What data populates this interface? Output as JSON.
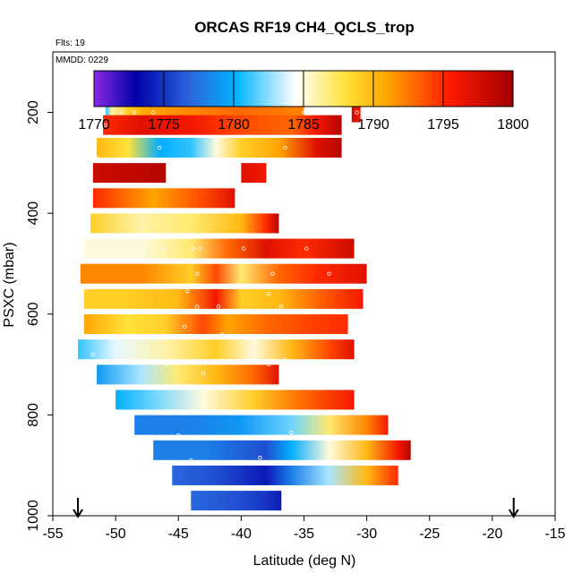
{
  "chart_data": {
    "type": "heatmap",
    "title": "ORCAS RF19 CH4_QCLS_trop",
    "annotations": {
      "flights": "Flts: 19",
      "date": "MMDD: 0229"
    },
    "xlabel": "Latitude (deg N)",
    "ylabel": "PSXC (mbar)",
    "xlim": [
      -55,
      -15
    ],
    "ylim": [
      1000,
      80
    ],
    "x_ticks": [
      "-55",
      "-50",
      "-45",
      "-40",
      "-35",
      "-30",
      "-25",
      "-20",
      "-15"
    ],
    "y_ticks": [
      "200",
      "400",
      "600",
      "800",
      "1000"
    ],
    "colorbar": {
      "range": [
        1770,
        1800
      ],
      "tick_labels": [
        "1770",
        "1775",
        "1780",
        "1785",
        "1790",
        "1795",
        "1800"
      ]
    },
    "airport_markers_lat": [
      -53.0,
      -18.3
    ],
    "bands": [
      {
        "p": 200,
        "x1": -50.8,
        "x2": -35.0,
        "stops": [
          [
            -50.8,
            1781
          ],
          [
            -50.3,
            1786
          ],
          [
            -49.0,
            1789
          ],
          [
            -47.5,
            1791
          ],
          [
            -44.0,
            1792
          ],
          [
            -40.0,
            1793
          ],
          [
            -35.0,
            1792
          ]
        ]
      },
      {
        "p": 200,
        "x1": -31.2,
        "x2": -30.5,
        "stops": [
          [
            -31.2,
            1798
          ],
          [
            -30.5,
            1796
          ]
        ]
      },
      {
        "p": 225,
        "x1": -51.0,
        "x2": -32.0,
        "stops": [
          [
            -51.0,
            1795
          ],
          [
            -48.0,
            1797
          ],
          [
            -44.0,
            1796
          ],
          [
            -40.0,
            1794
          ],
          [
            -36.0,
            1793
          ],
          [
            -34.0,
            1796
          ],
          [
            -32.0,
            1799
          ]
        ]
      },
      {
        "p": 270,
        "x1": -51.5,
        "x2": -32.0,
        "stops": [
          [
            -51.5,
            1790
          ],
          [
            -49.0,
            1788
          ],
          [
            -46.5,
            1780
          ],
          [
            -44.0,
            1781
          ],
          [
            -42.0,
            1785
          ],
          [
            -40.0,
            1789
          ],
          [
            -37.0,
            1791
          ],
          [
            -34.0,
            1797
          ],
          [
            -32.0,
            1799
          ]
        ]
      },
      {
        "p": 320,
        "x1": -51.8,
        "x2": -46.0,
        "stops": [
          [
            -51.8,
            1798
          ],
          [
            -46.0,
            1799
          ]
        ]
      },
      {
        "p": 320,
        "x1": -40.0,
        "x2": -38.0,
        "stops": [
          [
            -40.0,
            1797
          ],
          [
            -38.0,
            1796
          ]
        ]
      },
      {
        "p": 370,
        "x1": -51.8,
        "x2": -40.5,
        "stops": [
          [
            -51.8,
            1795
          ],
          [
            -47.0,
            1791
          ],
          [
            -43.0,
            1794
          ],
          [
            -40.5,
            1797
          ]
        ]
      },
      {
        "p": 420,
        "x1": -52.0,
        "x2": -37.0,
        "stops": [
          [
            -52.0,
            1789
          ],
          [
            -48.0,
            1786
          ],
          [
            -44.0,
            1787
          ],
          [
            -40.0,
            1790
          ],
          [
            -38.0,
            1795
          ],
          [
            -37.0,
            1799
          ]
        ]
      },
      {
        "p": 470,
        "x1": -52.5,
        "x2": -31.0,
        "stops": [
          [
            -52.5,
            1785
          ],
          [
            -48.0,
            1785
          ],
          [
            -44.0,
            1787
          ],
          [
            -41.0,
            1793
          ],
          [
            -38.0,
            1797
          ],
          [
            -35.0,
            1795
          ],
          [
            -31.0,
            1798
          ]
        ]
      },
      {
        "p": 520,
        "x1": -52.8,
        "x2": -30.0,
        "stops": [
          [
            -52.8,
            1792
          ],
          [
            -48.0,
            1792
          ],
          [
            -44.0,
            1789
          ],
          [
            -42.0,
            1794
          ],
          [
            -40.0,
            1787
          ],
          [
            -37.0,
            1793
          ],
          [
            -34.0,
            1795
          ],
          [
            -30.0,
            1797
          ]
        ]
      },
      {
        "p": 570,
        "x1": -52.5,
        "x2": -30.3,
        "stops": [
          [
            -52.5,
            1789
          ],
          [
            -49.0,
            1789
          ],
          [
            -45.0,
            1790
          ],
          [
            -42.0,
            1796
          ],
          [
            -40.0,
            1789
          ],
          [
            -37.0,
            1790
          ],
          [
            -34.0,
            1793
          ],
          [
            -30.3,
            1796
          ]
        ]
      },
      {
        "p": 620,
        "x1": -52.5,
        "x2": -31.5,
        "stops": [
          [
            -52.5,
            1791
          ],
          [
            -49.0,
            1788
          ],
          [
            -46.0,
            1789
          ],
          [
            -43.0,
            1794
          ],
          [
            -41.0,
            1791
          ],
          [
            -38.0,
            1793
          ],
          [
            -35.0,
            1794
          ],
          [
            -31.5,
            1795
          ]
        ]
      },
      {
        "p": 670,
        "x1": -53.0,
        "x2": -31.0,
        "stops": [
          [
            -53.0,
            1781
          ],
          [
            -50.0,
            1784
          ],
          [
            -46.0,
            1786
          ],
          [
            -42.0,
            1789
          ],
          [
            -39.0,
            1785
          ],
          [
            -36.0,
            1790
          ],
          [
            -33.0,
            1794
          ],
          [
            -31.0,
            1797
          ]
        ]
      },
      {
        "p": 720,
        "x1": -51.5,
        "x2": -37.0,
        "stops": [
          [
            -51.5,
            1779
          ],
          [
            -48.0,
            1783
          ],
          [
            -45.0,
            1787
          ],
          [
            -42.0,
            1790
          ],
          [
            -39.0,
            1793
          ],
          [
            -37.0,
            1797
          ]
        ]
      },
      {
        "p": 770,
        "x1": -50.0,
        "x2": -31.0,
        "stops": [
          [
            -50.0,
            1780
          ],
          [
            -47.0,
            1782
          ],
          [
            -43.0,
            1785
          ],
          [
            -39.0,
            1789
          ],
          [
            -35.0,
            1793
          ],
          [
            -31.0,
            1796
          ]
        ]
      },
      {
        "p": 820,
        "x1": -48.5,
        "x2": -28.3,
        "stops": [
          [
            -48.5,
            1778
          ],
          [
            -44.0,
            1778
          ],
          [
            -40.0,
            1779
          ],
          [
            -36.0,
            1782
          ],
          [
            -33.0,
            1787
          ],
          [
            -30.0,
            1792
          ],
          [
            -28.3,
            1796
          ]
        ]
      },
      {
        "p": 870,
        "x1": -47.0,
        "x2": -26.5,
        "stops": [
          [
            -47.0,
            1778
          ],
          [
            -43.0,
            1778
          ],
          [
            -38.0,
            1776
          ],
          [
            -36.0,
            1780
          ],
          [
            -33.0,
            1785
          ],
          [
            -30.0,
            1790
          ],
          [
            -27.5,
            1796
          ],
          [
            -26.5,
            1799
          ]
        ]
      },
      {
        "p": 920,
        "x1": -45.5,
        "x2": -27.5,
        "stops": [
          [
            -45.5,
            1777
          ],
          [
            -42.0,
            1776
          ],
          [
            -38.0,
            1774
          ],
          [
            -36.0,
            1778
          ],
          [
            -33.0,
            1783
          ],
          [
            -30.0,
            1790
          ],
          [
            -27.5,
            1795
          ]
        ]
      },
      {
        "p": 970,
        "x1": -44.0,
        "x2": -36.8,
        "stops": [
          [
            -44.0,
            1777
          ],
          [
            -40.0,
            1776
          ],
          [
            -38.0,
            1775
          ],
          [
            -36.8,
            1774
          ]
        ]
      }
    ],
    "sample_points": [
      [
        -49.5,
        200
      ],
      [
        -48.5,
        200
      ],
      [
        -47.0,
        200
      ],
      [
        -35.0,
        200
      ],
      [
        -30.8,
        200
      ],
      [
        -50.8,
        225
      ],
      [
        -46.5,
        270
      ],
      [
        -36.5,
        270
      ],
      [
        -51.5,
        290
      ],
      [
        -44.0,
        315
      ],
      [
        -38.8,
        355
      ],
      [
        -46.2,
        470
      ],
      [
        -43.8,
        470
      ],
      [
        -43.3,
        470
      ],
      [
        -39.8,
        470
      ],
      [
        -34.8,
        470
      ],
      [
        -43.5,
        520
      ],
      [
        -37.5,
        520
      ],
      [
        -33.0,
        520
      ],
      [
        -52.3,
        548
      ],
      [
        -44.3,
        555
      ],
      [
        -37.8,
        560
      ],
      [
        -43.5,
        585
      ],
      [
        -41.8,
        585
      ],
      [
        -36.8,
        585
      ],
      [
        -44.5,
        625
      ],
      [
        -41.5,
        640
      ],
      [
        -51.8,
        680
      ],
      [
        -46.0,
        700
      ],
      [
        -36.5,
        690
      ],
      [
        -43.0,
        718
      ],
      [
        -37.8,
        700
      ],
      [
        -45.0,
        840
      ],
      [
        -36.0,
        835
      ],
      [
        -44.0,
        890
      ],
      [
        -38.5,
        885
      ],
      [
        -45.0,
        945
      ],
      [
        -40.5,
        945
      ],
      [
        -43.5,
        995
      ],
      [
        -42.0,
        1000
      ],
      [
        -36.5,
        1000
      ],
      [
        -36.0,
        1000
      ]
    ]
  }
}
